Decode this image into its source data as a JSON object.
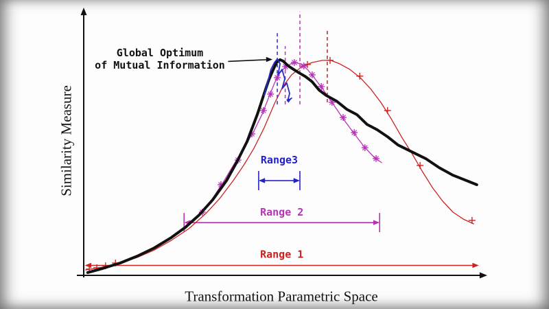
{
  "chart_data": {
    "type": "line",
    "title": "",
    "xlabel": "Transformation Parametric Space",
    "ylabel": "Similarity Measure",
    "xlim": [
      0,
      100
    ],
    "ylim": [
      0,
      125
    ],
    "note": "Axes have no numeric tick labels; coordinates are normalized 0-100 estimates read from the figure.",
    "legend": "none",
    "grid": false,
    "annotation": {
      "lines": [
        "Global Optimum",
        "of Mutual Information"
      ],
      "arrow_from": {
        "x": 36.4,
        "y": 98.9
      },
      "points_to": {
        "x": 47.6,
        "y": 99.8
      }
    },
    "series": [
      {
        "name": "red-full-range-curve",
        "color": "#cc2222",
        "width": 1.3,
        "marker": "plus",
        "points": [
          [
            0.5,
            2.5
          ],
          [
            4.8,
            3.8
          ],
          [
            9.2,
            5.7
          ],
          [
            13.5,
            8.3
          ],
          [
            17.8,
            11.7
          ],
          [
            22.1,
            16.2
          ],
          [
            26.5,
            21.6
          ],
          [
            30.8,
            28.6
          ],
          [
            34.3,
            35.6
          ],
          [
            37.7,
            43.8
          ],
          [
            40.3,
            50.8
          ],
          [
            42.9,
            58.7
          ],
          [
            45.5,
            68.3
          ],
          [
            48.1,
            79.4
          ],
          [
            50.2,
            87.3
          ],
          [
            52.4,
            92.7
          ],
          [
            55.0,
            96.5
          ],
          [
            57.6,
            98.4
          ],
          [
            60.2,
            99.4
          ],
          [
            62.3,
            99.4
          ],
          [
            64.5,
            97.8
          ],
          [
            67.1,
            95.2
          ],
          [
            69.7,
            91.4
          ],
          [
            72.3,
            86.3
          ],
          [
            74.9,
            80.0
          ],
          [
            77.5,
            72.4
          ],
          [
            80.1,
            64.1
          ],
          [
            82.7,
            56.5
          ],
          [
            85.3,
            48.3
          ],
          [
            87.9,
            40.6
          ],
          [
            90.5,
            34.3
          ],
          [
            93.1,
            29.2
          ],
          [
            95.7,
            26.0
          ],
          [
            98.3,
            23.8
          ]
        ],
        "marker_points": [
          [
            1.4,
            2.9
          ],
          [
            3.3,
            3.5
          ],
          [
            5.5,
            4.4
          ],
          [
            8.0,
            5.7
          ],
          [
            56.4,
            97.5
          ],
          [
            62.1,
            99.4
          ],
          [
            69.6,
            92.1
          ],
          [
            76.6,
            76.2
          ],
          [
            84.8,
            50.8
          ],
          [
            97.9,
            25.4
          ]
        ]
      },
      {
        "name": "magenta-mid-range-curve",
        "color": "#b832b8",
        "width": 1.3,
        "marker": "asterisk",
        "points": [
          [
            25.3,
            21.0
          ],
          [
            29.1,
            27.9
          ],
          [
            32.5,
            35.6
          ],
          [
            35.1,
            42.9
          ],
          [
            37.7,
            50.8
          ],
          [
            40.3,
            58.7
          ],
          [
            42.9,
            66.7
          ],
          [
            45.0,
            74.6
          ],
          [
            46.7,
            82.5
          ],
          [
            48.1,
            88.9
          ],
          [
            49.5,
            93.7
          ],
          [
            51.2,
            96.8
          ],
          [
            52.9,
            98.4
          ],
          [
            54.7,
            97.8
          ],
          [
            56.4,
            95.2
          ],
          [
            58.1,
            91.4
          ],
          [
            60.2,
            86.3
          ],
          [
            62.8,
            79.4
          ],
          [
            65.4,
            72.4
          ],
          [
            68.0,
            66.0
          ],
          [
            70.6,
            59.7
          ],
          [
            73.2,
            54.6
          ],
          [
            75.1,
            52.1
          ]
        ],
        "marker_points": [
          [
            29.9,
            29.2
          ],
          [
            34.6,
            41.9
          ],
          [
            38.9,
            53.3
          ],
          [
            42.4,
            65.4
          ],
          [
            45.3,
            76.2
          ],
          [
            47.1,
            83.8
          ],
          [
            48.8,
            91.4
          ],
          [
            50.9,
            96.5
          ],
          [
            53.1,
            98.4
          ],
          [
            55.5,
            96.8
          ],
          [
            57.6,
            92.7
          ],
          [
            59.9,
            87.3
          ],
          [
            62.6,
            80.0
          ],
          [
            65.4,
            73.0
          ],
          [
            68.2,
            66.0
          ],
          [
            70.9,
            59.0
          ],
          [
            73.7,
            54.0
          ]
        ]
      },
      {
        "name": "black-similarity-curve",
        "color": "#111111",
        "width": 4,
        "marker": "none",
        "points": [
          [
            1.0,
            1.3
          ],
          [
            4.8,
            3.2
          ],
          [
            9.2,
            5.7
          ],
          [
            13.5,
            8.9
          ],
          [
            17.8,
            12.7
          ],
          [
            22.1,
            17.5
          ],
          [
            25.6,
            22.2
          ],
          [
            29.1,
            27.9
          ],
          [
            32.5,
            34.9
          ],
          [
            36.0,
            43.8
          ],
          [
            38.6,
            52.4
          ],
          [
            41.2,
            61.9
          ],
          [
            43.8,
            74.6
          ],
          [
            45.5,
            84.1
          ],
          [
            46.7,
            90.5
          ],
          [
            47.8,
            95.2
          ],
          [
            48.6,
            98.4
          ],
          [
            49.5,
            99.7
          ],
          [
            50.3,
            99.0
          ],
          [
            51.6,
            96.8
          ],
          [
            52.9,
            95.2
          ],
          [
            54.2,
            93.7
          ],
          [
            55.9,
            91.9
          ],
          [
            57.6,
            89.5
          ],
          [
            59.3,
            85.7
          ],
          [
            61.1,
            83.2
          ],
          [
            63.7,
            80.6
          ],
          [
            66.3,
            76.8
          ],
          [
            68.9,
            74.3
          ],
          [
            71.4,
            69.8
          ],
          [
            74.0,
            67.3
          ],
          [
            76.6,
            64.1
          ],
          [
            79.2,
            60.3
          ],
          [
            82.7,
            57.1
          ],
          [
            86.2,
            54.0
          ],
          [
            89.6,
            49.8
          ],
          [
            93.1,
            46.3
          ],
          [
            96.5,
            43.8
          ],
          [
            99.1,
            41.9
          ]
        ]
      },
      {
        "name": "blue-fine-range-curve",
        "color": "#2929cc",
        "width": 1.8,
        "marker": "none",
        "end_arrow": true,
        "points": [
          [
            45.5,
            83.2
          ],
          [
            46.4,
            89.5
          ],
          [
            47.2,
            95.2
          ],
          [
            48.1,
            98.4
          ],
          [
            48.8,
            100.0
          ],
          [
            49.5,
            97.8
          ],
          [
            49.0,
            92.7
          ],
          [
            50.0,
            95.2
          ],
          [
            50.7,
            90.8
          ],
          [
            50.0,
            86.3
          ],
          [
            51.2,
            88.9
          ],
          [
            51.9,
            84.1
          ],
          [
            51.4,
            80.6
          ],
          [
            52.4,
            81.9
          ]
        ]
      }
    ],
    "dashed_verticals": [
      {
        "x": 48.8,
        "y_from": 79,
        "y_to": 112,
        "color": "#2929cc"
      },
      {
        "x": 50.8,
        "y_from": 79,
        "y_to": 106,
        "color": "#b832b8"
      },
      {
        "x": 54.5,
        "y_from": 79,
        "y_to": 122,
        "color": "#b832b8"
      },
      {
        "x": 61.4,
        "y_from": 80,
        "y_to": 114,
        "color": "#993333"
      }
    ],
    "ranges": [
      {
        "label": "Range3",
        "color": "#2222cc",
        "x_from": 44.1,
        "x_to": 54.5,
        "y": 43.8,
        "label_y": 51.7,
        "ticks": true
      },
      {
        "label": "Range 2",
        "color": "#b832b8",
        "x_from": 25.3,
        "x_to": 74.6,
        "y": 24.4,
        "label_y": 27.6,
        "ticks": true
      },
      {
        "label": "Range 1",
        "color": "#cc2222",
        "x_from": 0.3,
        "x_to": 99.6,
        "y": 4.6,
        "label_y": 8.1,
        "ticks": false
      }
    ]
  }
}
